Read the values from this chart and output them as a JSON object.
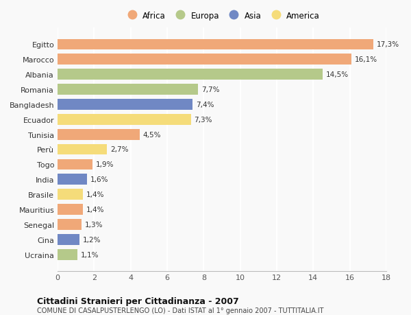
{
  "countries": [
    "Egitto",
    "Marocco",
    "Albania",
    "Romania",
    "Bangladesh",
    "Ecuador",
    "Tunisia",
    "Perù",
    "Togo",
    "India",
    "Brasile",
    "Mauritius",
    "Senegal",
    "Cina",
    "Ucraina"
  ],
  "values": [
    17.3,
    16.1,
    14.5,
    7.7,
    7.4,
    7.3,
    4.5,
    2.7,
    1.9,
    1.6,
    1.4,
    1.4,
    1.3,
    1.2,
    1.1
  ],
  "labels": [
    "17,3%",
    "16,1%",
    "14,5%",
    "7,7%",
    "7,4%",
    "7,3%",
    "4,5%",
    "2,7%",
    "1,9%",
    "1,6%",
    "1,4%",
    "1,4%",
    "1,3%",
    "1,2%",
    "1,1%"
  ],
  "continents": [
    "Africa",
    "Africa",
    "Europa",
    "Europa",
    "Asia",
    "America",
    "Africa",
    "America",
    "Africa",
    "Asia",
    "America",
    "Africa",
    "Africa",
    "Asia",
    "Europa"
  ],
  "continent_colors": {
    "Africa": "#F0A878",
    "Europa": "#B5C98A",
    "Asia": "#7088C4",
    "America": "#F5DC7A"
  },
  "legend_order": [
    "Africa",
    "Europa",
    "Asia",
    "America"
  ],
  "title": "Cittadini Stranieri per Cittadinanza - 2007",
  "subtitle": "COMUNE DI CASALPUSTERLENGO (LO) - Dati ISTAT al 1° gennaio 2007 - TUTTITALIA.IT",
  "xlim": [
    0,
    18
  ],
  "xticks": [
    0,
    2,
    4,
    6,
    8,
    10,
    12,
    14,
    16,
    18
  ],
  "background_color": "#f9f9f9",
  "grid_color": "#ffffff",
  "bar_height": 0.72
}
